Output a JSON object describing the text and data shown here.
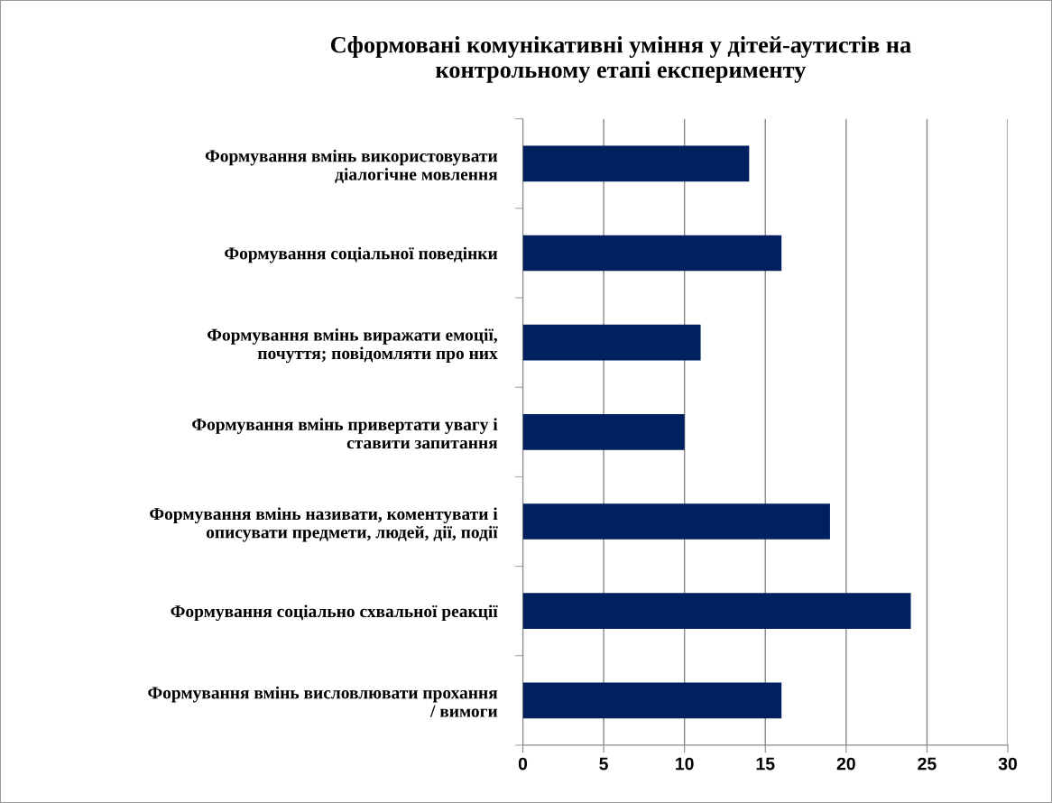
{
  "chart_data": {
    "type": "bar",
    "orientation": "horizontal",
    "title": "Сформовані комунікативні уміння у дітей-аутистів на\nконтрольному етапі експерименту",
    "categories": [
      "Формування вмінь використовувати\nдіалогічне мовлення",
      "Формування соціальної поведінки",
      "Формування вмінь виражати емоції,\nпочуття; повідомляти про них",
      "Формування вмінь привертати увагу і\nставити запитання",
      "Формування вмінь називати, коментувати і\nописувати предмети, людей, дії, події",
      "Формування соціально схвальної реакції",
      "Формування вмінь висловлювати прохання\n/ вимоги"
    ],
    "values": [
      14,
      16,
      11,
      10,
      19,
      24,
      16
    ],
    "color": "#002060",
    "xlim": [
      0,
      30
    ],
    "xticks": [
      0,
      5,
      10,
      15,
      20,
      25,
      30
    ],
    "grid": "x",
    "legend": false
  }
}
